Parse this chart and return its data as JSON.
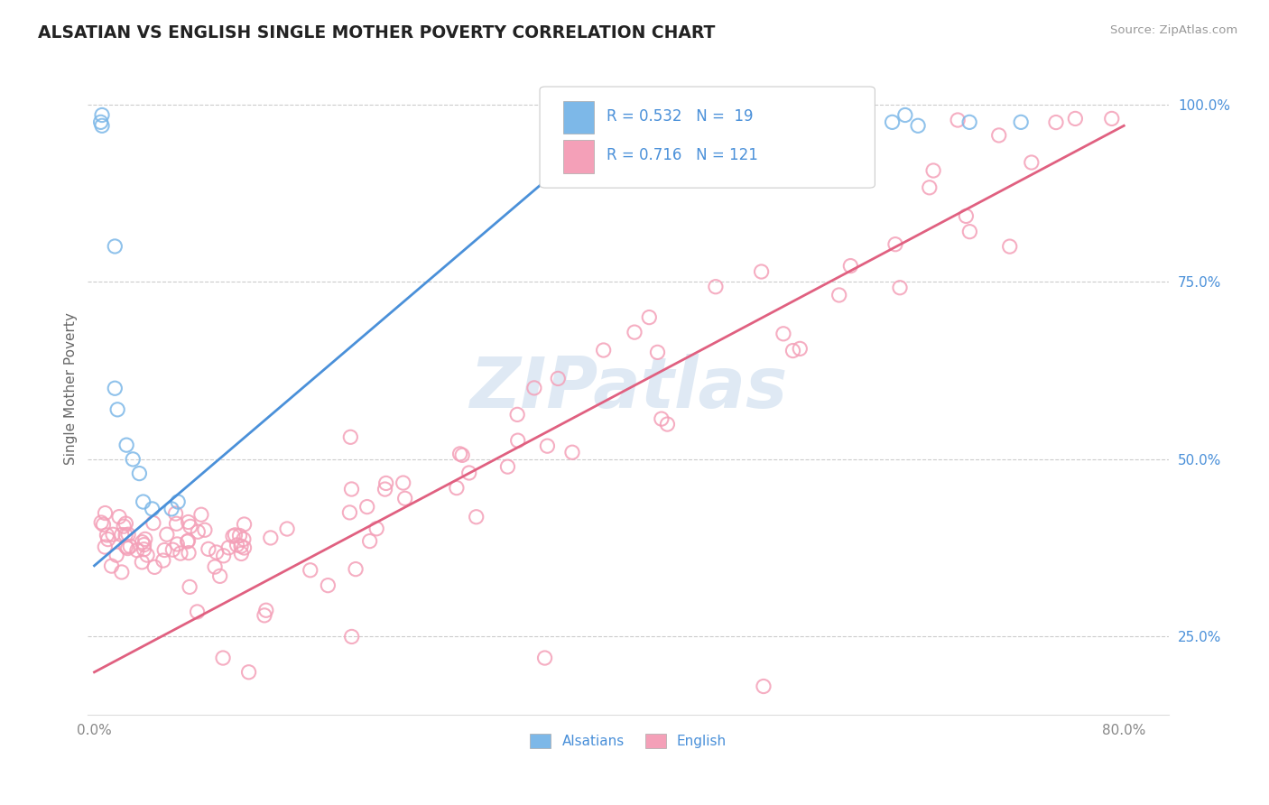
{
  "title": "ALSATIAN VS ENGLISH SINGLE MOTHER POVERTY CORRELATION CHART",
  "source": "Source: ZipAtlas.com",
  "ylabel": "Single Mother Poverty",
  "blue_color": "#7db8e8",
  "blue_edge_color": "#7db8e8",
  "pink_color": "#f4a0b8",
  "pink_edge_color": "#f4a0b8",
  "blue_line_color": "#4a90d9",
  "pink_line_color": "#e06080",
  "R_blue": 0.532,
  "N_blue": 19,
  "R_pink": 0.716,
  "N_pink": 121,
  "legend_labels": [
    "Alsatians",
    "English"
  ],
  "watermark": "ZIPatlas",
  "watermark_color_zip": "#c8d8ee",
  "watermark_color_atlas": "#d0e0f0",
  "background_color": "#ffffff",
  "grid_color": "#cccccc",
  "right_tick_color": "#4a90d9",
  "blue_scatter_x": [
    0.005,
    0.006,
    0.006,
    0.016,
    0.016,
    0.018,
    0.025,
    0.03,
    0.035,
    0.038,
    0.045,
    0.06,
    0.065,
    0.55,
    0.62,
    0.63,
    0.64,
    0.68,
    0.72
  ],
  "blue_scatter_y": [
    0.975,
    0.97,
    0.985,
    0.8,
    0.6,
    0.57,
    0.52,
    0.5,
    0.48,
    0.44,
    0.43,
    0.43,
    0.44,
    0.975,
    0.975,
    0.985,
    0.97,
    0.975,
    0.975
  ],
  "blue_line_x0": 0.0,
  "blue_line_y0": 0.35,
  "blue_line_x1": 0.42,
  "blue_line_y1": 1.0,
  "pink_line_x0": 0.0,
  "pink_line_y0": 0.2,
  "pink_line_x1": 0.8,
  "pink_line_y1": 0.97,
  "xlim_low": -0.005,
  "xlim_high": 0.835,
  "ylim_low": 0.14,
  "ylim_high": 1.06,
  "xticks": [
    0.0,
    0.8
  ],
  "xticklabels": [
    "0.0%",
    "80.0%"
  ],
  "yticks_right": [
    0.25,
    0.5,
    0.75,
    1.0
  ],
  "yticklabels_right": [
    "25.0%",
    "50.0%",
    "75.0%",
    "100.0%"
  ]
}
